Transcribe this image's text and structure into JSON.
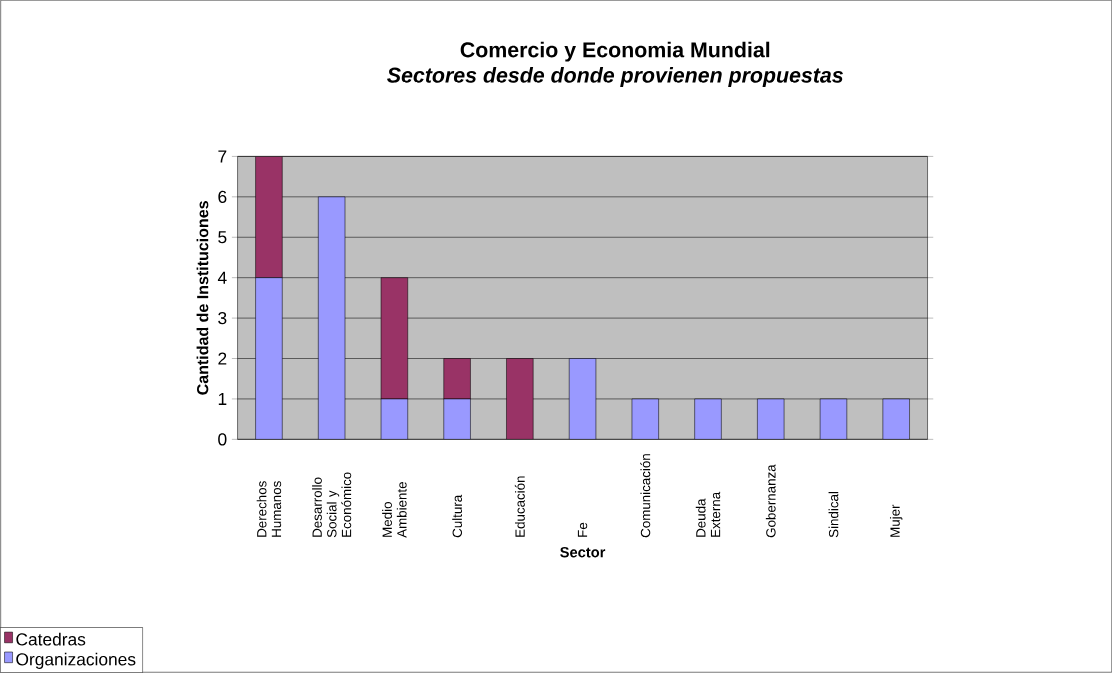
{
  "chart_data": {
    "type": "bar",
    "title": "Comercio y Economia Mundial",
    "subtitle": "Sectores desde donde provienen propuestas",
    "xlabel": "Sector",
    "ylabel": "Cantidad de Instituciones",
    "categories": [
      "Derechos Humanos",
      "Desarrollo Social y Económico",
      "Medio Ambiente",
      "Cultura",
      "Educación",
      "Fe",
      "Comunicación",
      "Deuda Externa",
      "Gobernanza",
      "Sindical",
      "Mujer"
    ],
    "series": [
      {
        "name": "Organizaciones",
        "color": "#9999ff",
        "values": [
          4,
          6,
          1,
          1,
          0,
          2,
          1,
          1,
          1,
          1,
          1
        ]
      },
      {
        "name": "Catedras",
        "color": "#993366",
        "values": [
          3,
          0,
          3,
          1,
          2,
          0,
          0,
          0,
          0,
          0,
          0
        ]
      }
    ],
    "stacked": true,
    "ylim": [
      0,
      7
    ],
    "yticks": [
      0,
      1,
      2,
      3,
      4,
      5,
      6,
      7
    ],
    "grid": "y",
    "legend": "bottom left"
  }
}
